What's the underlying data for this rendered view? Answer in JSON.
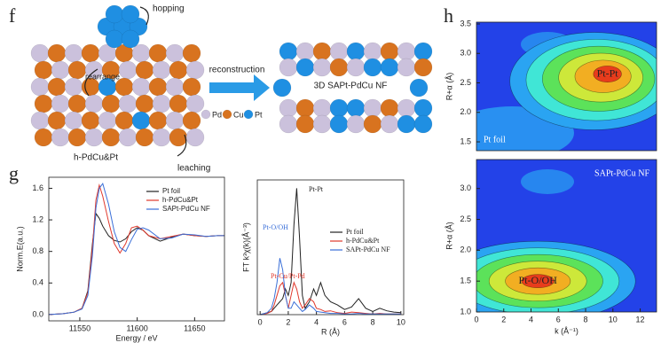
{
  "panel_labels": [
    "f",
    "g",
    "h"
  ],
  "diagram": {
    "hopping": "hopping",
    "rearrange": "rearrange",
    "arrow_label": "reconstruction",
    "product": "3D SAPt-PdCu NF",
    "precursor": "h-PdCu&Pt",
    "leaching": "leaching",
    "legend": [
      "Pd",
      "Cu",
      "Pt"
    ]
  },
  "chart_data": [
    {
      "type": "line",
      "xlabel": "Energy / eV",
      "ylabel": "Norm.E(a.u.)",
      "x": [
        11523,
        11535,
        11545,
        11552,
        11557,
        11561,
        11564,
        11567,
        11570,
        11575,
        11580,
        11585,
        11590,
        11595,
        11600,
        11605,
        11610,
        11620,
        11630,
        11640,
        11650,
        11660,
        11670,
        11676
      ],
      "series": [
        {
          "name": "Pt foil",
          "color": "#222222",
          "values": [
            0.0,
            0.01,
            0.03,
            0.08,
            0.3,
            0.9,
            1.28,
            1.22,
            1.12,
            1.0,
            0.94,
            0.92,
            0.96,
            1.05,
            1.1,
            1.07,
            1.0,
            0.93,
            0.98,
            1.02,
            1.0,
            0.99,
            1.0,
            1.0
          ]
        },
        {
          "name": "h-PdCu&Pt",
          "color": "#e0382c",
          "values": [
            0.0,
            0.01,
            0.03,
            0.08,
            0.28,
            0.85,
            1.45,
            1.64,
            1.5,
            1.18,
            0.9,
            0.78,
            0.9,
            1.1,
            1.12,
            1.07,
            1.0,
            0.96,
            0.99,
            1.02,
            1.0,
            0.99,
            1.0,
            1.0
          ]
        },
        {
          "name": "SAPt-PdCu NF",
          "color": "#3a6fd8",
          "values": [
            0.0,
            0.01,
            0.03,
            0.07,
            0.24,
            0.75,
            1.35,
            1.6,
            1.66,
            1.4,
            1.05,
            0.85,
            0.8,
            0.95,
            1.08,
            1.1,
            1.07,
            0.96,
            0.97,
            1.02,
            1.01,
            0.99,
            1.0,
            1.0
          ]
        }
      ],
      "xlim": [
        11523,
        11676
      ],
      "ylim": [
        -0.08,
        1.74
      ],
      "xticks": [
        11550,
        11600,
        11650
      ],
      "yticks": [
        {
          "value": 0,
          "label": "0.0"
        },
        0.4,
        0.8,
        1.2,
        1.6
      ]
    },
    {
      "type": "line",
      "xlabel": "R (Å)",
      "ylabel": "FT k³χ(k)(Å⁻³)",
      "x": [
        0,
        0.5,
        0.8,
        1.0,
        1.2,
        1.4,
        1.6,
        1.8,
        2.0,
        2.2,
        2.4,
        2.6,
        2.8,
        3.0,
        3.2,
        3.5,
        3.8,
        4.0,
        4.3,
        4.6,
        5.0,
        5.5,
        6.0,
        6.5,
        7.0,
        7.5,
        8.0,
        8.5,
        9.0,
        9.5,
        10
      ],
      "series": [
        {
          "name": "Pt foil",
          "color": "#222222",
          "values": [
            0,
            0.3,
            0.5,
            1,
            1.5,
            2,
            2.5,
            4,
            3,
            5,
            14,
            19.7,
            12,
            3,
            1,
            2,
            4,
            3,
            5,
            3,
            2,
            1.5,
            0.8,
            1.2,
            2.5,
            1,
            0.5,
            1,
            0.6,
            0.4,
            0.3
          ]
        },
        {
          "name": "h-PdCu&Pt",
          "color": "#e0382c",
          "values": [
            0,
            0.2,
            0.5,
            1.5,
            3,
            4.5,
            5,
            3,
            1,
            3,
            5,
            4,
            2,
            1,
            1.5,
            2.5,
            2,
            1,
            0.8,
            0.5,
            0.6,
            0.3,
            0.2,
            0.4,
            0.3,
            0.2,
            0.1,
            0.2,
            0.1,
            0.1,
            0.1
          ]
        },
        {
          "name": "SAPt-PdCu NF",
          "color": "#3a6fd8",
          "values": [
            0,
            0.3,
            1,
            2.5,
            5,
            8.8,
            7,
            3,
            1,
            1,
            2,
            1.5,
            1,
            0.5,
            0.8,
            1.5,
            1,
            0.5,
            0.4,
            0.3,
            0.2,
            0.2,
            0.1,
            0.1,
            0.2,
            0.1,
            0.1,
            0.1,
            0.1,
            0.1,
            0.1
          ]
        }
      ],
      "annotations": [
        {
          "text": "Pt-Pt",
          "color": "#222222"
        },
        {
          "text": "Pt-O/OH",
          "color": "#3a6fd8"
        },
        {
          "text": "Pt-Cu/Pt-Pd",
          "color": "#e0382c"
        }
      ],
      "xlim": [
        -0.2,
        10.2
      ],
      "ylim": [
        0,
        21
      ],
      "xticks": [
        0,
        2,
        4,
        6,
        8,
        10
      ]
    },
    {
      "type": "contour",
      "ylabel": "R+α (Å)",
      "annotation": "Pt foil",
      "peaks": [
        {
          "x": 9.6,
          "y": 2.65,
          "label": "Pt-Pt"
        }
      ],
      "colormap": [
        "#2342e8",
        "#2aa4f2",
        "#40e6d6",
        "#5ce25a",
        "#cde83a",
        "#f2ae22",
        "#e83c1c"
      ],
      "xlim": [
        0,
        13.2
      ],
      "ylim": [
        1.35,
        3.53
      ],
      "yticks": [
        1.5,
        {
          "value": 2,
          "label": "2.0"
        },
        2.5,
        {
          "value": 3,
          "label": "3.0"
        },
        3.5
      ]
    },
    {
      "type": "contour",
      "xlabel": "k (Å⁻¹)",
      "ylabel": "R+α (Å)",
      "annotation": "SAPt-PdCu NF",
      "peaks": [
        {
          "x": 4.5,
          "y": 1.5,
          "label": "Pt-O/OH"
        }
      ],
      "colormap": [
        "#2342e8",
        "#2aa4f2",
        "#40e6d6",
        "#5ce25a",
        "#cde83a",
        "#f2ae22",
        "#e83c1c"
      ],
      "xlim": [
        0,
        13.2
      ],
      "ylim": [
        1.0,
        3.47
      ],
      "xticks": [
        0,
        2,
        4,
        6,
        8,
        10,
        12
      ],
      "yticks": [
        {
          "value": 1,
          "label": "1.0"
        },
        1.5,
        {
          "value": 2,
          "label": "2.0"
        },
        2.5,
        {
          "value": 3,
          "label": "3.0"
        }
      ]
    }
  ]
}
